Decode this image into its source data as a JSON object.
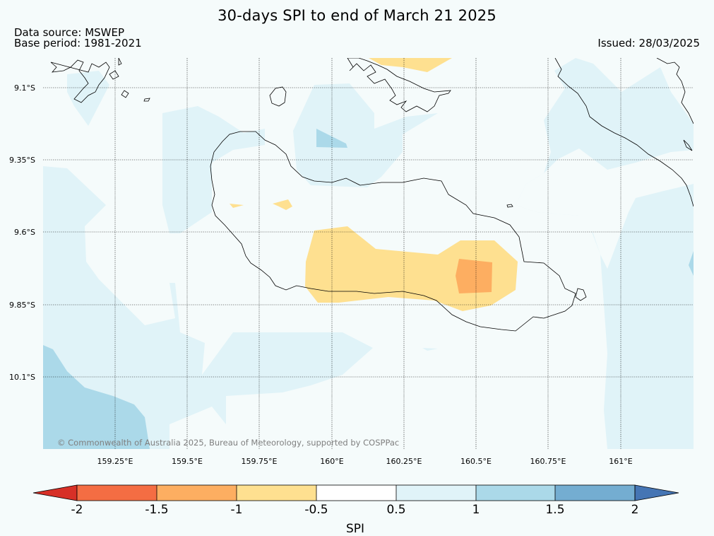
{
  "title": "30-days SPI to end of March 21 2025",
  "data_source": "Data source: MSWEP",
  "base_period": "Base period: 1981-2021",
  "issued": "Issued: 28/03/2025",
  "copyright": "© Commonwealth of Australia 2025, Bureau of Meteorology, supported by COSPPac",
  "lat_labels": [
    "9.1°S",
    "9.35°S",
    "9.6°S",
    "9.85°S",
    "10.1°S"
  ],
  "lon_labels": [
    "159.25°E",
    "159.5°E",
    "159.75°E",
    "160°E",
    "160.25°E",
    "160.5°E",
    "160.75°E",
    "161°E"
  ],
  "colorbar": {
    "title": "SPI",
    "ticks": [
      "-2",
      "-1.5",
      "-1",
      "-0.5",
      "0.5",
      "1",
      "1.5",
      "2"
    ],
    "colors": {
      "below_-2": "#d73027",
      "-2_to_-1.5": "#f46d43",
      "-1.5_to_-1": "#fdae61",
      "-1_to_-0.5": "#fee090",
      "-0.5_to_0.5": "#ffffff",
      "0.5_to_1": "#e0f3f8",
      "1_to_1.5": "#abd9e9",
      "1.5_to_2": "#74add1",
      "above_2": "#4575b4"
    }
  }
}
